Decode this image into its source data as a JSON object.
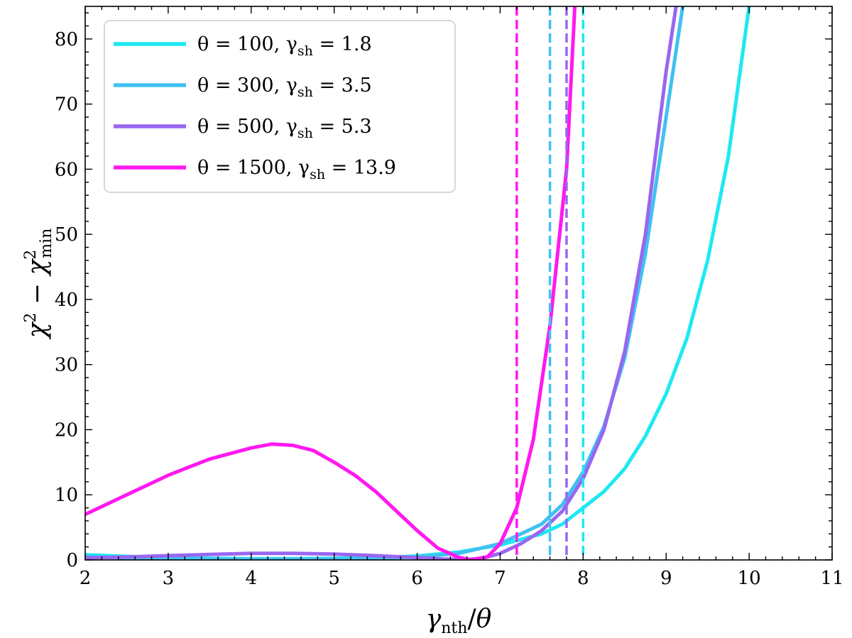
{
  "chart_data": {
    "type": "line",
    "title": "",
    "xlabel": "γ_nth/θ",
    "ylabel": "χ² − χ²_min",
    "xlim": [
      2,
      11
    ],
    "ylim": [
      0,
      85
    ],
    "xticks": [
      2,
      3,
      4,
      5,
      6,
      7,
      8,
      9,
      10,
      11
    ],
    "yticks": [
      0,
      10,
      20,
      30,
      40,
      50,
      60,
      70,
      80
    ],
    "grid": false,
    "legend_position": "top-left",
    "series": [
      {
        "name": "θ = 100, γ_sh = 1.8",
        "legend_parts": {
          "a": "θ = 100, γ",
          "sub": "sh",
          "b": " = 1.8"
        },
        "color": "#1ee8f2",
        "x": [
          2.0,
          2.5,
          3.0,
          3.5,
          4.0,
          4.5,
          5.0,
          5.5,
          6.0,
          6.5,
          7.0,
          7.5,
          7.75,
          8.0,
          8.25,
          8.5,
          8.75,
          9.0,
          9.25,
          9.5,
          9.75,
          10.0
        ],
        "values": [
          0.8,
          0.55,
          0.35,
          0.25,
          0.2,
          0.2,
          0.25,
          0.35,
          0.6,
          1.2,
          2.3,
          4.0,
          5.5,
          8.0,
          10.5,
          14.0,
          19.0,
          25.5,
          34.0,
          46.0,
          62.0,
          85.0
        ],
        "cutoff": 8.0
      },
      {
        "name": "θ = 300, γ_sh = 3.5",
        "legend_parts": {
          "a": "θ = 300, γ",
          "sub": "sh",
          "b": " = 3.5"
        },
        "color": "#41c0f2",
        "x": [
          2.0,
          2.5,
          3.0,
          3.5,
          4.0,
          4.5,
          5.0,
          5.5,
          6.0,
          6.5,
          7.0,
          7.5,
          7.75,
          8.0,
          8.25,
          8.5,
          8.75,
          9.0,
          9.2
        ],
        "values": [
          0.5,
          0.3,
          0.2,
          0.15,
          0.12,
          0.12,
          0.15,
          0.25,
          0.45,
          1.0,
          2.5,
          5.5,
          8.5,
          13.5,
          20.5,
          31.0,
          47.0,
          68.0,
          85.0
        ],
        "cutoff": 7.6
      },
      {
        "name": "θ = 500, γ_sh = 5.3",
        "legend_parts": {
          "a": "θ = 500, γ",
          "sub": "sh",
          "b": " = 5.3"
        },
        "color": "#9966f0",
        "x": [
          2.0,
          2.5,
          3.0,
          3.5,
          4.0,
          4.5,
          5.0,
          5.5,
          6.0,
          6.3,
          6.6,
          6.8,
          7.0,
          7.25,
          7.5,
          7.75,
          8.0,
          8.25,
          8.5,
          8.75,
          9.0,
          9.12
        ],
        "values": [
          0.3,
          0.45,
          0.65,
          0.85,
          1.0,
          1.0,
          0.9,
          0.65,
          0.35,
          0.15,
          0.05,
          0.3,
          1.0,
          2.5,
          4.5,
          7.5,
          12.5,
          20.0,
          32.0,
          50.0,
          75.0,
          85.0
        ],
        "cutoff": 7.8
      },
      {
        "name": "θ = 1500, γ_sh = 13.9",
        "legend_parts": {
          "a": "θ = 1500, γ",
          "sub": "sh",
          "b": " = 13.9"
        },
        "color": "#ff18f0",
        "x": [
          2.0,
          2.5,
          3.0,
          3.5,
          4.0,
          4.25,
          4.5,
          4.75,
          5.0,
          5.25,
          5.5,
          5.75,
          6.0,
          6.25,
          6.5,
          6.65,
          6.85,
          7.0,
          7.2,
          7.4,
          7.6,
          7.8,
          7.9
        ],
        "values": [
          7.0,
          10.0,
          13.0,
          15.5,
          17.2,
          17.8,
          17.6,
          16.8,
          15.0,
          13.0,
          10.5,
          7.5,
          4.5,
          1.8,
          0.4,
          0.0,
          0.5,
          2.5,
          8.0,
          18.5,
          36.0,
          60.0,
          85.0
        ],
        "cutoff": 7.2
      }
    ]
  }
}
